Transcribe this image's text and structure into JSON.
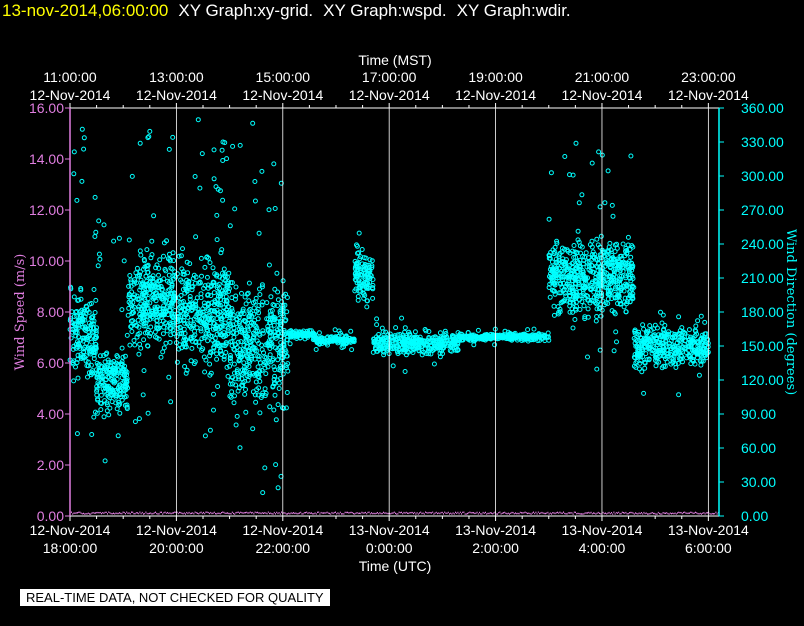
{
  "header": {
    "datetime": "13-nov-2014,06:00:00",
    "graphs": [
      "XY Graph:xy-grid.",
      "XY Graph:wspd.",
      "XY Graph:wdir."
    ]
  },
  "disclaimer": "REAL-TIME DATA, NOT CHECKED FOR QUALITY",
  "colors": {
    "background": "#000000",
    "frame": "#ffffff",
    "speed_axis": "#e07ee0",
    "direction_axis": "#00ffff",
    "data": "#00ffff"
  },
  "chart_data": {
    "type": "scatter",
    "top_axis": {
      "label": "Time (MST)",
      "ticks": [
        {
          "time": "11:00:00",
          "date": "12-Nov-2014"
        },
        {
          "time": "13:00:00",
          "date": "12-Nov-2014"
        },
        {
          "time": "15:00:00",
          "date": "12-Nov-2014"
        },
        {
          "time": "17:00:00",
          "date": "12-Nov-2014"
        },
        {
          "time": "19:00:00",
          "date": "12-Nov-2014"
        },
        {
          "time": "21:00:00",
          "date": "12-Nov-2014"
        },
        {
          "time": "23:00:00",
          "date": "12-Nov-2014"
        }
      ]
    },
    "bottom_axis": {
      "label": "Time (UTC)",
      "ticks": [
        {
          "date": "12-Nov-2014",
          "time": "18:00:00"
        },
        {
          "date": "12-Nov-2014",
          "time": "20:00:00"
        },
        {
          "date": "12-Nov-2014",
          "time": "22:00:00"
        },
        {
          "date": "13-Nov-2014",
          "time": "0:00:00"
        },
        {
          "date": "13-Nov-2014",
          "time": "2:00:00"
        },
        {
          "date": "13-Nov-2014",
          "time": "4:00:00"
        },
        {
          "date": "13-Nov-2014",
          "time": "6:00:00"
        }
      ]
    },
    "xlim_utc_hours": [
      18,
      30.2
    ],
    "left_axis": {
      "label": "Wind Speed (m/s)",
      "range": [
        0,
        16
      ],
      "ticks": [
        "0.00",
        "2.00",
        "4.00",
        "6.00",
        "8.00",
        "10.00",
        "12.00",
        "14.00",
        "16.00"
      ]
    },
    "right_axis": {
      "label": "Wind Direction (degrees)",
      "range": [
        0,
        360
      ],
      "ticks": [
        "0.00",
        "30.00",
        "60.00",
        "90.00",
        "120.00",
        "150.00",
        "180.00",
        "210.00",
        "240.00",
        "270.00",
        "300.00",
        "330.00",
        "360.00"
      ]
    },
    "grid": "vertical lines at major ticks",
    "series": [
      {
        "variable": "wdir",
        "axis": "right",
        "style": "open circles",
        "segments": [
          {
            "t": [
              18.0,
              18.5
            ],
            "center": 160,
            "spread": 55,
            "outlier_max": 345
          },
          {
            "t": [
              18.5,
              19.1
            ],
            "center": 120,
            "spread": 40,
            "outlier_max": 280
          },
          {
            "t": [
              19.1,
              20.0
            ],
            "center": 190,
            "spread": 60,
            "outlier_max": 360
          },
          {
            "t": [
              20.0,
              21.0
            ],
            "center": 180,
            "spread": 70,
            "outlier_max": 360
          },
          {
            "t": [
              21.0,
              22.1
            ],
            "center": 150,
            "spread": 75,
            "outlier_max": 360
          },
          {
            "t": [
              22.1,
              22.6
            ],
            "center": 160,
            "spread": 5,
            "outlier_max": 170
          },
          {
            "t": [
              22.6,
              23.35
            ],
            "center": 155,
            "spread": 5,
            "outlier_max": 165
          },
          {
            "t": [
              23.35,
              23.7
            ],
            "center": 210,
            "spread": 35,
            "outlier_max": 250
          },
          {
            "t": [
              23.7,
              25.3
            ],
            "center": 152,
            "spread": 15,
            "outlier_max": 175
          },
          {
            "t": [
              25.3,
              27.0
            ],
            "center": 158,
            "spread": 4,
            "outlier_max": 165
          },
          {
            "t": [
              27.0,
              28.6
            ],
            "center": 210,
            "spread": 45,
            "outlier_max": 330
          },
          {
            "t": [
              28.6,
              30.0
            ],
            "center": 150,
            "spread": 25,
            "outlier_max": 180
          }
        ]
      },
      {
        "variable": "wspd",
        "axis": "left",
        "style": "points near baseline",
        "approx_value": 0.1
      }
    ]
  }
}
